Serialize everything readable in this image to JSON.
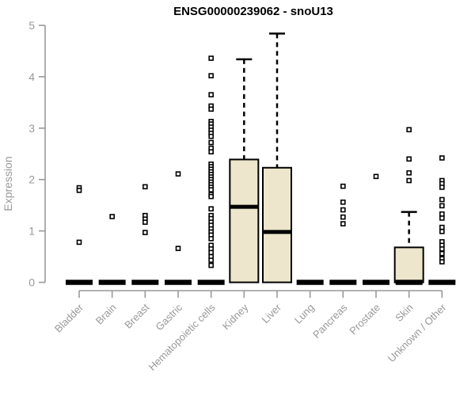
{
  "chart_data": {
    "type": "boxplot",
    "title": "ENSG00000239062 - snoU13",
    "ylabel": "Expression",
    "xlabel": "",
    "ylim": [
      0,
      5
    ],
    "yticks": [
      0,
      1,
      2,
      3,
      4,
      5
    ],
    "grid": false,
    "legend": "none",
    "categories": [
      "Bladder",
      "Brain",
      "Breast",
      "Gastric",
      "Hematopoietic cells",
      "Kidney",
      "Liver",
      "Lung",
      "Pancreas",
      "Prostate",
      "Skin",
      "Unknown / Other"
    ],
    "boxes": [
      {
        "category": "Bladder",
        "q1": 0,
        "median": 0,
        "q3": 0,
        "whisker_low": 0,
        "whisker_high": 0,
        "outliers": [
          1.84,
          1.79,
          0.78
        ]
      },
      {
        "category": "Brain",
        "q1": 0,
        "median": 0,
        "q3": 0,
        "whisker_low": 0,
        "whisker_high": 0,
        "outliers": [
          1.28
        ]
      },
      {
        "category": "Breast",
        "q1": 0,
        "median": 0,
        "q3": 0,
        "whisker_low": 0,
        "whisker_high": 0,
        "outliers": [
          1.86,
          1.3,
          1.23,
          1.17,
          0.97
        ]
      },
      {
        "category": "Gastric",
        "q1": 0,
        "median": 0,
        "q3": 0,
        "whisker_low": 0,
        "whisker_high": 0,
        "outliers": [
          2.11,
          0.66
        ]
      },
      {
        "category": "Hematopoietic cells",
        "q1": 0,
        "median": 0,
        "q3": 0,
        "whisker_low": 0,
        "whisker_high": 0,
        "outliers": [
          4.36,
          4.02,
          3.65,
          3.43,
          3.37,
          3.13,
          3.08,
          3.02,
          2.96,
          2.9,
          2.84,
          2.72,
          2.61,
          2.54,
          2.3,
          2.25,
          2.2,
          2.15,
          2.1,
          2.05,
          2.0,
          1.95,
          1.9,
          1.85,
          1.8,
          1.71,
          1.67,
          1.43,
          1.3,
          1.24,
          1.17,
          1.11,
          1.04,
          0.98,
          0.92,
          0.85,
          0.72,
          0.65,
          0.58,
          0.5,
          0.43,
          0.33
        ]
      },
      {
        "category": "Kidney",
        "q1": 0,
        "median": 1.47,
        "q3": 2.39,
        "whisker_low": 0,
        "whisker_high": 4.34,
        "outliers": []
      },
      {
        "category": "Liver",
        "q1": 0,
        "median": 0.98,
        "q3": 2.23,
        "whisker_low": 0,
        "whisker_high": 4.84,
        "outliers": []
      },
      {
        "category": "Lung",
        "q1": 0,
        "median": 0,
        "q3": 0,
        "whisker_low": 0,
        "whisker_high": 0,
        "outliers": []
      },
      {
        "category": "Pancreas",
        "q1": 0,
        "median": 0,
        "q3": 0,
        "whisker_low": 0,
        "whisker_high": 0,
        "outliers": [
          1.87,
          1.56,
          1.41,
          1.27,
          1.14
        ]
      },
      {
        "category": "Prostate",
        "q1": 0,
        "median": 0,
        "q3": 0,
        "whisker_low": 0,
        "whisker_high": 0,
        "outliers": [
          2.06
        ]
      },
      {
        "category": "Skin",
        "q1": 0,
        "median": 0,
        "q3": 0.68,
        "whisker_low": 0,
        "whisker_high": 1.37,
        "outliers": [
          2.97,
          2.4,
          2.13,
          1.98
        ]
      },
      {
        "category": "Unknown / Other",
        "q1": 0,
        "median": 0,
        "q3": 0,
        "whisker_low": 0,
        "whisker_high": 0,
        "outliers": [
          2.42,
          1.98,
          1.92,
          1.85,
          1.61,
          1.49,
          1.33,
          1.25,
          1.07,
          0.99,
          0.79,
          0.72,
          0.65,
          0.56,
          0.46,
          0.4
        ]
      }
    ],
    "colors": {
      "box_fill": "#EDE6CC",
      "box_stroke": "#000000",
      "median": "#000000",
      "outlier_stroke": "#000000",
      "outlier_fill": "#FFFFFF",
      "axis": "#999999",
      "tick_label": "#999999",
      "title": "#000000",
      "background": "#FFFFFF"
    }
  }
}
